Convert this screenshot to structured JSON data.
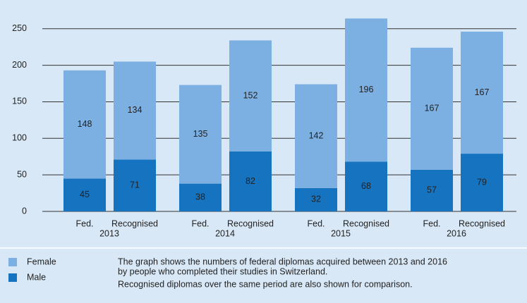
{
  "chart_data": {
    "type": "stacked_bar",
    "categories": [
      "Fed.",
      "Recognised",
      "Fed.",
      "Recognised",
      "Fed.",
      "Recognised",
      "Fed.",
      "Recognised"
    ],
    "groups": [
      "2013",
      "2014",
      "2015",
      "2016"
    ],
    "series": [
      {
        "name": "Male",
        "color": "#1673c0",
        "values": [
          45,
          71,
          38,
          82,
          32,
          68,
          57,
          79
        ]
      },
      {
        "name": "Female",
        "color": "#7db0e2",
        "values": [
          148,
          134,
          135,
          152,
          142,
          196,
          167,
          167
        ]
      }
    ],
    "ylim": [
      0,
      270
    ],
    "yticks": [
      0,
      50,
      100,
      150,
      200,
      250
    ],
    "grid": true,
    "notes": [
      "The graph shows the numbers of federal diplomas acquired between 2013 and 2016",
      "by people who completed their studies in Switzerland.",
      "Recognised diplomas over the same period are also shown for comparison."
    ]
  }
}
